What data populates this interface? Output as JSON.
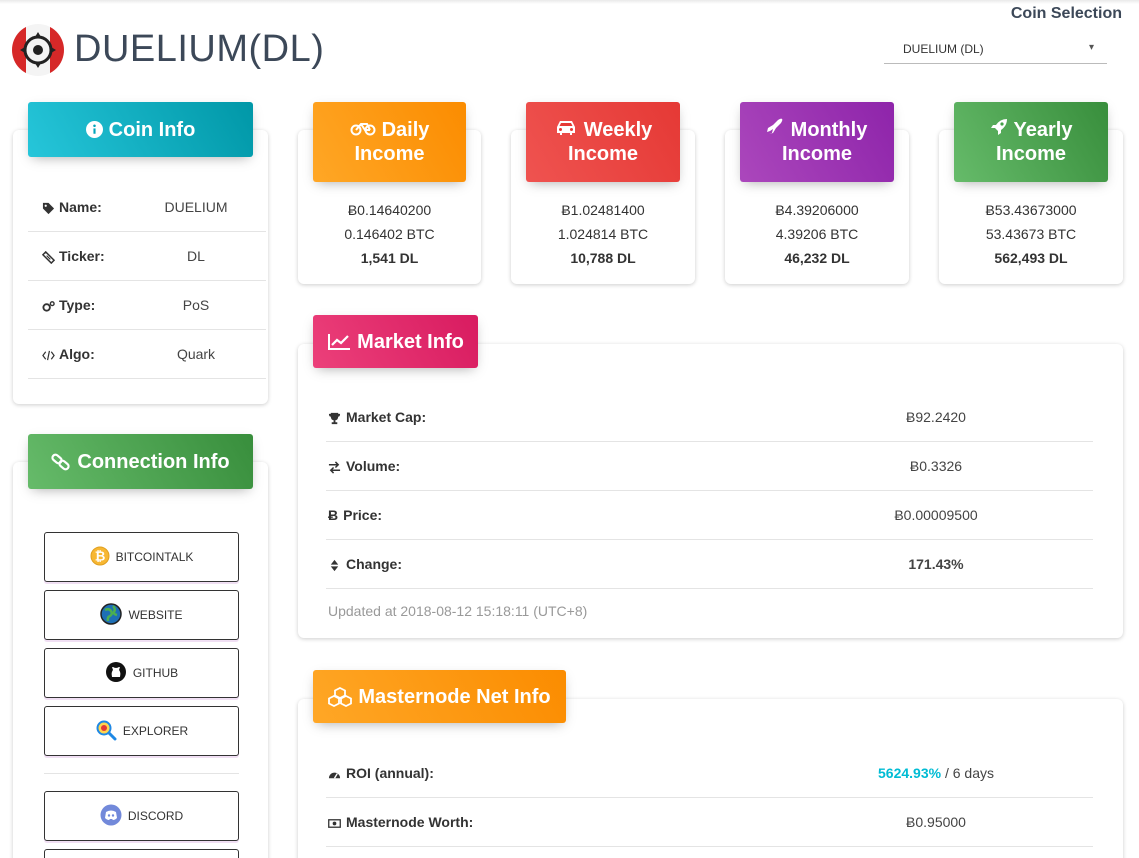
{
  "header": {
    "title": "DUELIUM(DL)",
    "coin_selection_label": "Coin Selection",
    "coin_select_value": "DUELIUM (DL)"
  },
  "coin_info": {
    "title": "Coin Info",
    "rows": [
      {
        "label": "Name:",
        "value": "DUELIUM",
        "icon": "tag-icon"
      },
      {
        "label": "Ticker:",
        "value": "DL",
        "icon": "ticket-icon"
      },
      {
        "label": "Type:",
        "value": "PoS",
        "icon": "cogs-icon"
      },
      {
        "label": "Algo:",
        "value": "Quark",
        "icon": "code-icon"
      }
    ]
  },
  "connection_info": {
    "title": "Connection Info",
    "buttons": [
      {
        "label": "BITCOINTALK",
        "icon": "bitcoin-icon"
      },
      {
        "label": "WEBSITE",
        "icon": "globe-icon"
      },
      {
        "label": "GITHUB",
        "icon": "github-icon"
      },
      {
        "label": "EXPLORER",
        "icon": "explorer-icon"
      },
      {
        "label": "DISCORD",
        "icon": "discord-icon"
      }
    ]
  },
  "income": [
    {
      "title_line1": "Daily",
      "title_line2": "Income",
      "icon": "bicycle-icon",
      "btc_value": "Ƀ0.14640200",
      "btc_text": "0.146402 BTC",
      "coin_amount": "1,541 DL",
      "color": "#fb8c00"
    },
    {
      "title_line1": "Weekly",
      "title_line2": "Income",
      "icon": "car-icon",
      "btc_value": "Ƀ1.02481400",
      "btc_text": "1.024814 BTC",
      "coin_amount": "10,788 DL",
      "color": "#e53935"
    },
    {
      "title_line1": "Monthly",
      "title_line2": "Income",
      "icon": "plane-icon",
      "btc_value": "Ƀ4.39206000",
      "btc_text": "4.39206 BTC",
      "coin_amount": "46,232 DL",
      "color": "#8e24aa"
    },
    {
      "title_line1": "Yearly",
      "title_line2": "Income",
      "icon": "rocket-icon",
      "btc_value": "Ƀ53.43673000",
      "btc_text": "53.43673 BTC",
      "coin_amount": "562,493 DL",
      "color": "#388e3c"
    }
  ],
  "market_info": {
    "title": "Market Info",
    "rows": [
      {
        "label": "Market Cap:",
        "value": "Ƀ92.2420",
        "icon": "trophy-icon"
      },
      {
        "label": "Volume:",
        "value": "Ƀ0.3326",
        "icon": "exchange-icon"
      },
      {
        "label": "Price:",
        "value": "Ƀ0.00009500",
        "icon": "btc-icon"
      },
      {
        "label": "Change:",
        "value": "171.43%",
        "icon": "sort-icon"
      }
    ],
    "updated": "Updated at 2018-08-12 15:18:11 (UTC+8)"
  },
  "masternode_info": {
    "title": "Masternode Net Info",
    "rows": [
      {
        "label": "ROI (annual):",
        "value": "5624.93%",
        "suffix": " / 6 days",
        "icon": "tachometer-icon"
      },
      {
        "label": "Masternode Worth:",
        "value": "Ƀ0.95000",
        "icon": "money-icon"
      }
    ]
  },
  "colors": {
    "cyan": "#00acc1",
    "green": "#43a047",
    "orange": "#fb8c00",
    "red": "#e53935",
    "purple": "#8e24aa",
    "pink": "#d81b60",
    "teal_value": "#00bcd4"
  }
}
